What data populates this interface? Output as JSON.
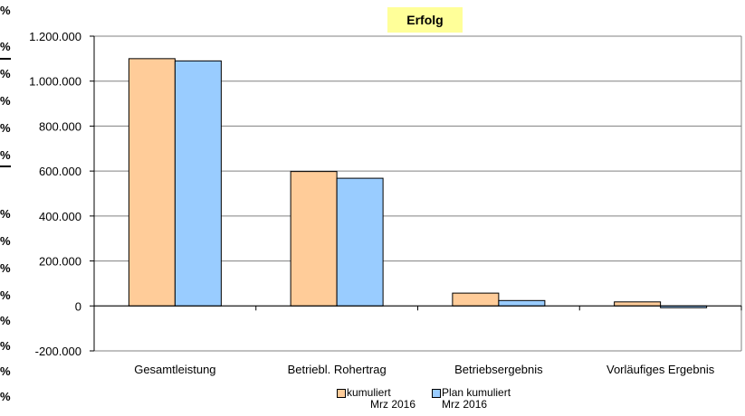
{
  "chart_data": {
    "type": "bar",
    "title": "Erfolg",
    "categories": [
      "Gesamtleistung",
      "Betriebl. Rohertrag",
      "Betriebsergebnis",
      "Vorläufiges Ergebnis"
    ],
    "series": [
      {
        "name": "kumuliert Mrz 2016",
        "name_lines": [
          "kumuliert",
          "Mrz 2016"
        ],
        "color": "#ffcc99",
        "values": [
          1100000,
          598000,
          57000,
          18000
        ]
      },
      {
        "name": "Plan kumuliert Mrz 2016",
        "name_lines": [
          "Plan kumuliert",
          "Mrz 2016"
        ],
        "color": "#99ccff",
        "values": [
          1090000,
          568000,
          24000,
          -8000
        ]
      }
    ],
    "yticks": [
      "1.200.000",
      "1.000.000",
      "800.000",
      "600.000",
      "400.000",
      "200.000",
      "0",
      "-200.000"
    ],
    "ylim": [
      -200000,
      1200000
    ],
    "xlabel": "",
    "ylabel": "",
    "grid": true,
    "legend_position": "bottom"
  },
  "left_margin": {
    "marks": [
      "%",
      "%",
      "%",
      "%",
      "%",
      "%",
      "%",
      "%",
      "%",
      "%",
      "%",
      "%",
      "%",
      "%"
    ]
  }
}
